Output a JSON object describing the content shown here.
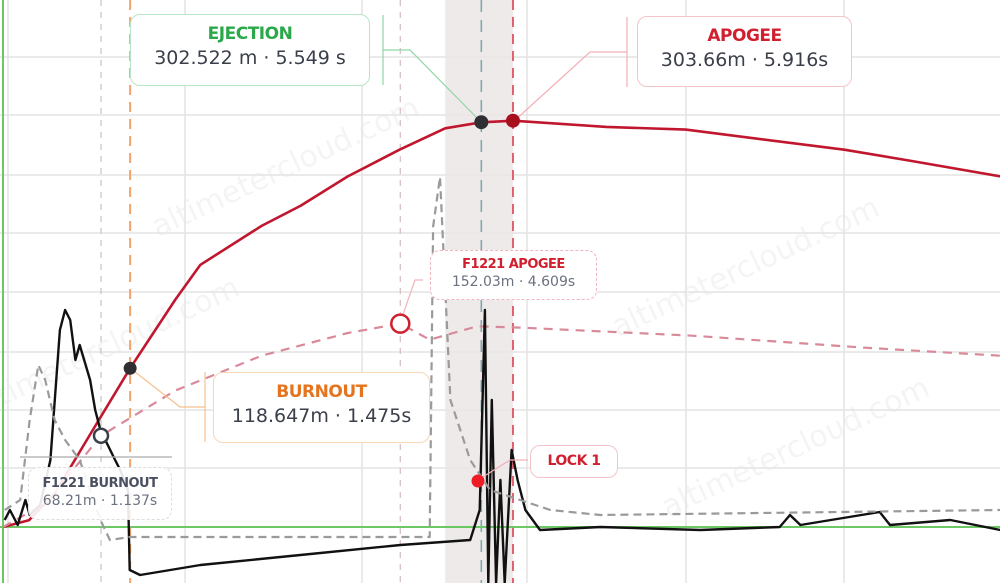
{
  "watermark": "altimetercloud.com",
  "colors": {
    "altitude": "#c0172f",
    "comparison_altitude": "#d98a9a",
    "acceleration": "#111111",
    "comparison_acceleration": "#9a9a9a",
    "ejection": "#2aa84a",
    "apogee": "#d0202f",
    "burnout": "#e4751e",
    "baseline": "#6cc764",
    "window": "#ece6e6"
  },
  "annotations": {
    "ejection": {
      "title": "EJECTION",
      "value": "302.522 m · 5.549 s"
    },
    "apogee": {
      "title": "APOGEE",
      "value": "303.66m · 5.916s"
    },
    "burnout": {
      "title": "BURNOUT",
      "value": "118.647m · 1.475s"
    },
    "f1221_apogee": {
      "title": "F1221 APOGEE",
      "value": "152.03m · 4.609s"
    },
    "f1221_burnout": {
      "title": "F1221 BURNOUT",
      "value": "68.21m · 1.137s"
    },
    "lock": {
      "title": "LOCK 1"
    }
  },
  "chart_data": {
    "type": "line",
    "title": "",
    "xlabel": "",
    "ylabel": "",
    "xlim": [
      0,
      11.6
    ],
    "ylim": [
      0,
      393
    ],
    "grid": true,
    "events": [
      {
        "name": "F1221 BURNOUT",
        "t": 1.137,
        "alt": 68.21
      },
      {
        "name": "BURNOUT",
        "t": 1.475,
        "alt": 118.647
      },
      {
        "name": "F1221 APOGEE",
        "t": 4.609,
        "alt": 152.03
      },
      {
        "name": "EJECTION",
        "t": 5.549,
        "alt": 302.522
      },
      {
        "name": "APOGEE",
        "t": 5.916,
        "alt": 303.66
      }
    ],
    "lock_window": [
      5.13,
      5.916
    ],
    "series": [
      {
        "key": "altitude",
        "style": "solid",
        "x": [
          0,
          0.3,
          0.6,
          1.0,
          1.475,
          2.0,
          2.29,
          3.0,
          3.45,
          4.0,
          4.6,
          5.13,
          5.549,
          5.916,
          7.0,
          7.92,
          9.76,
          10.5,
          11.57
        ],
        "y": [
          0,
          5,
          25,
          68,
          118.6,
          170,
          196,
          225,
          240,
          262,
          282,
          298,
          302.5,
          303.66,
          299,
          297,
          282,
          274,
          262
        ]
      },
      {
        "key": "comparison_altitude",
        "style": "dashed",
        "x": [
          0,
          0.5,
          1.137,
          2.0,
          3.0,
          4.0,
          4.609,
          4.95,
          5.5,
          6.0,
          8.0,
          10.0,
          11.57
        ],
        "y": [
          0,
          18,
          68.21,
          102,
          128,
          145,
          152.03,
          140,
          150,
          149,
          143,
          134,
          128
        ]
      },
      {
        "key": "acceleration",
        "style": "solid",
        "x": [
          0.02,
          0.08,
          0.17,
          0.26,
          0.31,
          0.43,
          0.55,
          0.66,
          0.72,
          0.78,
          0.84,
          0.89,
          1.01,
          1.07,
          1.13,
          1.3,
          1.36,
          1.45,
          1.47,
          1.59,
          2.29,
          3.45,
          4.61,
          5.42,
          5.53,
          5.59,
          5.63,
          5.67,
          5.72,
          5.77,
          5.82,
          5.9,
          5.97,
          6.06,
          6.23,
          6.93,
          8.09,
          9.01,
          9.13,
          9.25,
          10.17,
          10.29,
          10.99,
          11.57
        ],
        "y": [
          0.7,
          1.7,
          0.2,
          2.7,
          1.2,
          2.2,
          6.7,
          19.7,
          21.7,
          20.7,
          16.7,
          18.2,
          14.7,
          11.7,
          9.7,
          6.7,
          5.7,
          3.7,
          -4.3,
          -4.8,
          -3.8,
          -2.8,
          -1.8,
          -1.3,
          1.7,
          21.7,
          -5.6,
          12.7,
          -5.6,
          4.7,
          -5.6,
          7.7,
          4.7,
          1.7,
          -0.3,
          0,
          -0.3,
          0,
          1.2,
          0.2,
          1.5,
          0.2,
          0.7,
          -0.3
        ]
      },
      {
        "key": "comparison_acceleration",
        "style": "dashed",
        "x": [
          0.02,
          0.2,
          0.31,
          0.41,
          0.49,
          0.6,
          0.72,
          0.89,
          1.13,
          1.24,
          1.47,
          4.95,
          4.99,
          5.07,
          5.19,
          5.42,
          5.65,
          6.0,
          6.35,
          6.93,
          11.57
        ],
        "y": [
          1.7,
          2.7,
          10.7,
          16.2,
          14.7,
          10.7,
          8.7,
          6.7,
          0.7,
          -1.3,
          -1.0,
          -1.0,
          30,
          35,
          12.7,
          6.7,
          3.7,
          2.7,
          1.7,
          1.2,
          1.7
        ]
      }
    ]
  }
}
